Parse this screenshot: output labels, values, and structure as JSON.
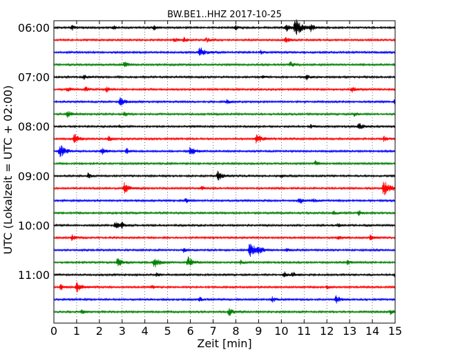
{
  "chart_data": {
    "type": "line",
    "title": "BW.BE1..HHZ 2017-10-25",
    "xlabel": "Zeit  [min]",
    "ylabel": "UTC (Lokalzeit = UTC + 02:00)",
    "xlim": [
      0,
      15
    ],
    "x_ticks": [
      "0",
      "1",
      "2",
      "3",
      "4",
      "5",
      "6",
      "7",
      "8",
      "9",
      "10",
      "11",
      "12",
      "13",
      "14",
      "15"
    ],
    "y_ticks": [
      "06:00",
      "07:00",
      "08:00",
      "09:00",
      "10:00",
      "11:00"
    ],
    "grid": "vertical-dotted",
    "trace_interval_min": 15,
    "series_colors": [
      "#000000",
      "#ff0000",
      "#0000ff",
      "#008000"
    ],
    "traces": [
      {
        "start": "06:00",
        "events": [
          [
            0.8,
            0.3
          ],
          [
            2.6,
            0.25
          ],
          [
            4.4,
            0.25
          ],
          [
            8.0,
            0.25
          ],
          [
            10.6,
            1.0
          ],
          [
            10.2,
            0.5
          ],
          [
            11.3,
            0.35
          ]
        ]
      },
      {
        "start": "06:15",
        "events": [
          [
            5.3,
            0.25
          ],
          [
            5.7,
            0.3
          ],
          [
            6.7,
            0.3
          ],
          [
            10.2,
            0.35
          ]
        ]
      },
      {
        "start": "06:30",
        "events": [
          [
            6.4,
            0.7
          ],
          [
            9.1,
            0.2
          ]
        ]
      },
      {
        "start": "06:45",
        "events": [
          [
            3.1,
            0.35
          ],
          [
            10.4,
            0.35
          ]
        ]
      },
      {
        "start": "07:00",
        "events": [
          [
            1.3,
            0.3
          ],
          [
            9.2,
            0.2
          ],
          [
            11.1,
            0.3
          ]
        ]
      },
      {
        "start": "07:15",
        "events": [
          [
            0.6,
            0.3
          ],
          [
            1.4,
            0.3
          ],
          [
            2.3,
            0.3
          ],
          [
            13.1,
            0.35
          ]
        ]
      },
      {
        "start": "07:30",
        "events": [
          [
            2.9,
            0.55
          ],
          [
            7.6,
            0.25
          ],
          [
            15.0,
            0.35
          ]
        ]
      },
      {
        "start": "07:45",
        "events": [
          [
            0.6,
            0.4
          ],
          [
            3.1,
            0.25
          ],
          [
            13.2,
            0.25
          ]
        ]
      },
      {
        "start": "08:00",
        "events": [
          [
            2.9,
            0.2
          ],
          [
            11.3,
            0.2
          ],
          [
            13.4,
            0.45
          ]
        ]
      },
      {
        "start": "08:15",
        "events": [
          [
            0.9,
            0.55
          ],
          [
            2.4,
            0.3
          ],
          [
            8.9,
            0.65
          ],
          [
            14.5,
            0.3
          ]
        ]
      },
      {
        "start": "08:30",
        "events": [
          [
            0.25,
            0.8
          ],
          [
            2.1,
            0.4
          ],
          [
            3.2,
            0.3
          ],
          [
            6.0,
            0.55
          ]
        ]
      },
      {
        "start": "08:45",
        "events": [
          [
            11.5,
            0.3
          ]
        ]
      },
      {
        "start": "09:00",
        "events": [
          [
            1.5,
            0.3
          ],
          [
            7.2,
            0.55
          ],
          [
            10.0,
            0.2
          ]
        ]
      },
      {
        "start": "09:15",
        "events": [
          [
            3.1,
            0.6
          ],
          [
            6.5,
            0.25
          ],
          [
            14.5,
            1.0
          ]
        ]
      },
      {
        "start": "09:30",
        "events": [
          [
            5.8,
            0.3
          ],
          [
            10.8,
            0.45
          ],
          [
            11.4,
            0.25
          ]
        ]
      },
      {
        "start": "09:45",
        "events": [
          [
            12.3,
            0.3
          ],
          [
            13.4,
            0.25
          ]
        ]
      },
      {
        "start": "10:00",
        "events": [
          [
            2.7,
            0.45
          ],
          [
            3.0,
            0.3
          ],
          [
            12.5,
            0.2
          ]
        ]
      },
      {
        "start": "10:15",
        "events": [
          [
            0.8,
            0.35
          ],
          [
            12.5,
            0.3
          ],
          [
            13.9,
            0.3
          ]
        ]
      },
      {
        "start": "10:30",
        "events": [
          [
            5.7,
            0.3
          ],
          [
            8.6,
            0.9
          ],
          [
            9.0,
            0.4
          ],
          [
            10.2,
            0.25
          ]
        ]
      },
      {
        "start": "10:45",
        "events": [
          [
            2.8,
            0.55
          ],
          [
            4.4,
            0.65
          ],
          [
            5.9,
            0.6
          ],
          [
            8.2,
            0.25
          ],
          [
            12.9,
            0.25
          ]
        ]
      },
      {
        "start": "11:00",
        "events": [
          [
            4.5,
            0.25
          ],
          [
            10.1,
            0.4
          ],
          [
            10.5,
            0.3
          ],
          [
            15.0,
            0.25
          ]
        ]
      },
      {
        "start": "11:15",
        "events": [
          [
            0.3,
            0.35
          ],
          [
            1.0,
            0.65
          ],
          [
            4.3,
            0.2
          ],
          [
            12.0,
            0.2
          ]
        ]
      },
      {
        "start": "11:30",
        "events": [
          [
            6.4,
            0.25
          ],
          [
            9.6,
            0.35
          ],
          [
            12.4,
            0.45
          ]
        ]
      },
      {
        "start": "11:45",
        "events": [
          [
            1.2,
            0.25
          ],
          [
            7.7,
            0.45
          ],
          [
            14.8,
            0.3
          ]
        ]
      }
    ]
  }
}
